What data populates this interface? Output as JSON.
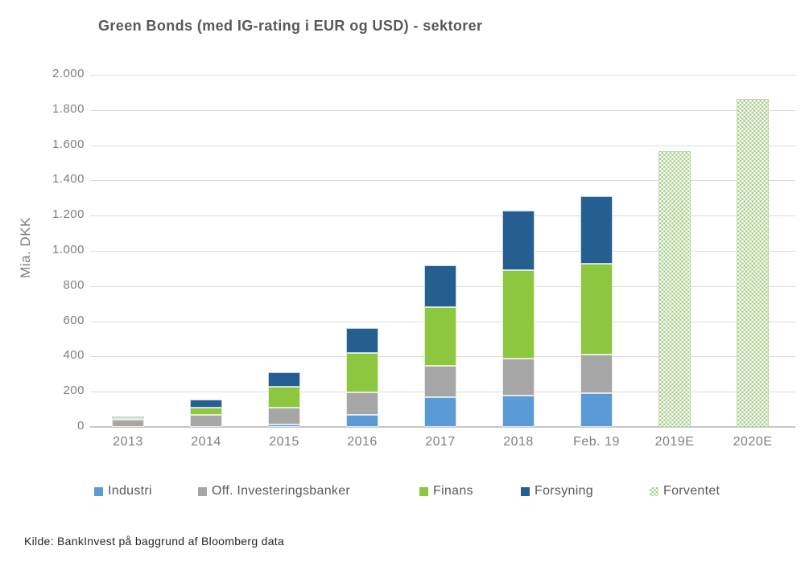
{
  "header": {
    "title": "Green Bonds (med IG-rating i EUR og USD) - sektorer"
  },
  "source": {
    "text": "Kilde: BankInvest på baggrund af Bloomberg data"
  },
  "colors": {
    "industri": "#5B9BD5",
    "off_investeringsbanker": "#A6A6A6",
    "finans": "#8DC63F",
    "forsyning": "#255E91",
    "forventet_pattern": "#A9D08E",
    "title_text": "#595959",
    "axis_text": "#7F7F7F",
    "gridline": "#DCDCDC"
  },
  "chart_data": {
    "type": "bar",
    "stacked": true,
    "title": "Green Bonds (med IG-rating i EUR og USD) - sektorer",
    "xlabel": "",
    "ylabel": "Mia. DKK",
    "ylim": [
      0,
      2000
    ],
    "ytick_interval": 200,
    "ytick_labels_top_to_bottom": [
      "2.000",
      "1.800",
      "1.600",
      "1.400",
      "1.200",
      "1.000",
      "800",
      "600",
      "400",
      "200",
      "0"
    ],
    "grid": true,
    "legend_position": "bottom",
    "categories": [
      "2013",
      "2014",
      "2015",
      "2016",
      "2017",
      "2018",
      "Feb. 19",
      "2019E",
      "2020E"
    ],
    "series": [
      {
        "name": "Industri",
        "color": "#5B9BD5",
        "pattern": "solid",
        "values": [
          0,
          0,
          15,
          70,
          170,
          180,
          190,
          0,
          0
        ]
      },
      {
        "name": "Off. Investeringsbanker",
        "color": "#A6A6A6",
        "pattern": "solid",
        "values": [
          40,
          70,
          95,
          125,
          175,
          210,
          220,
          0,
          0
        ]
      },
      {
        "name": "Finans",
        "color": "#8DC63F",
        "pattern": "solid",
        "values": [
          10,
          40,
          120,
          225,
          335,
          500,
          515,
          0,
          0
        ]
      },
      {
        "name": "Forsyning",
        "color": "#255E91",
        "pattern": "solid",
        "values": [
          10,
          45,
          80,
          140,
          240,
          340,
          385,
          0,
          0
        ]
      },
      {
        "name": "Forventet",
        "color": "#A9D08E",
        "pattern": "diagonal-cross",
        "values": [
          0,
          0,
          0,
          0,
          0,
          0,
          0,
          1565,
          1865
        ]
      }
    ],
    "totals": [
      60,
      155,
      310,
      560,
      920,
      1230,
      1310,
      1565,
      1865
    ]
  }
}
